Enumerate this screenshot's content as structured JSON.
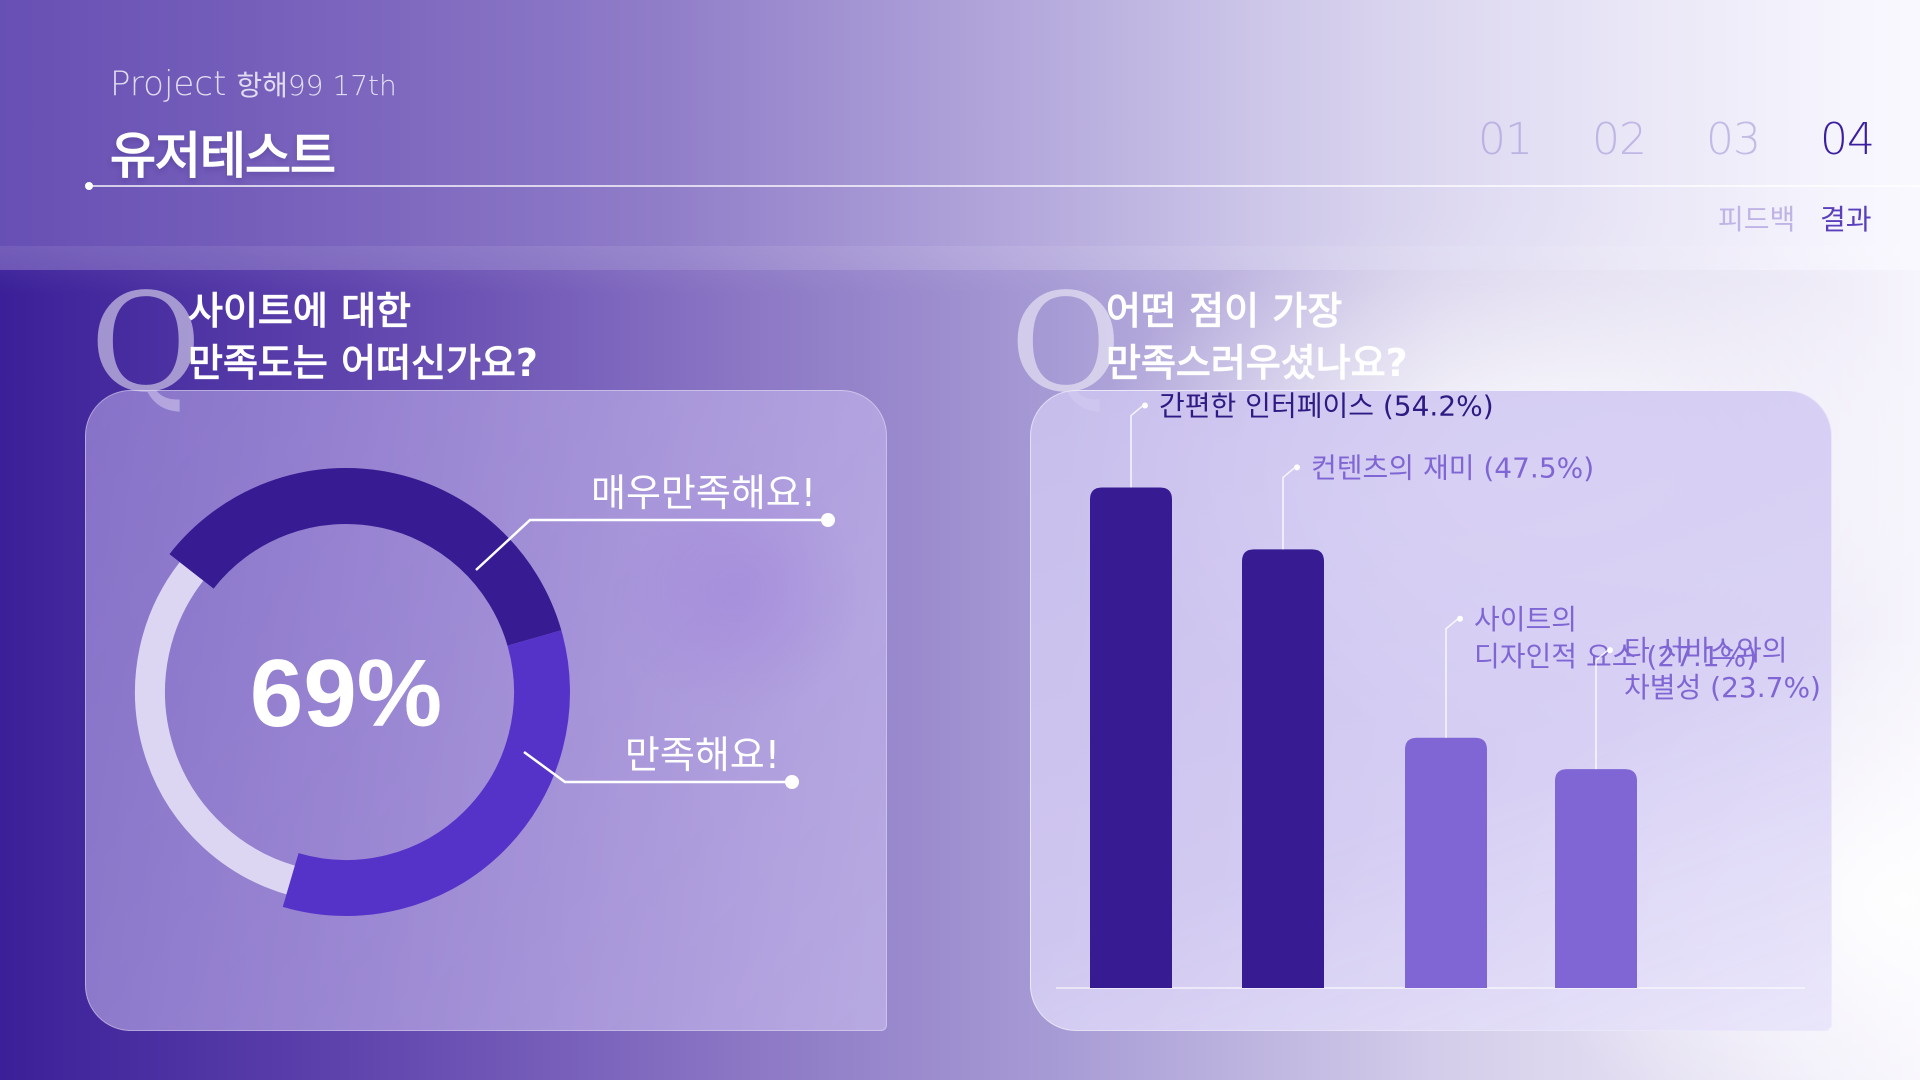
{
  "header": {
    "project_label": "Project",
    "project_sub": "항해99 17th",
    "title": "유저테스트",
    "steps": [
      "01",
      "02",
      "03",
      "04"
    ],
    "active_step": "04",
    "step_labels": [
      "피드백",
      "결과"
    ],
    "active_step_label": "결과"
  },
  "colors": {
    "dark_purple": "#361b92",
    "mid_purple": "#5533c8",
    "light_purple": "#7f66d4",
    "pale_track": "#dcd6f2"
  },
  "q1": {
    "letter": "Q",
    "line1": "사이트에 대한",
    "line2": "만족도는 어떠신가요?"
  },
  "q2": {
    "letter": "Q",
    "line1": "어떤 점이 가장",
    "line2": "만족스러우셨나요?"
  },
  "chart_data": [
    {
      "type": "pie",
      "center_label": "69%",
      "labels": [
        "매우만족해요!",
        "만족해요!"
      ],
      "values": [
        35,
        34
      ],
      "total": 100
    },
    {
      "type": "bar",
      "categories": [
        [
          "간편한 인터페이스 (54.2%)"
        ],
        [
          "컨텐츠의 재미 (47.5%)"
        ],
        [
          "사이트의",
          "디자인적 요소 (27.1%)"
        ],
        [
          "타 서비스와의",
          "차별성 (23.7%)"
        ]
      ],
      "values": [
        54.2,
        47.5,
        27.1,
        23.7
      ],
      "ylim": [
        0,
        60
      ]
    }
  ]
}
